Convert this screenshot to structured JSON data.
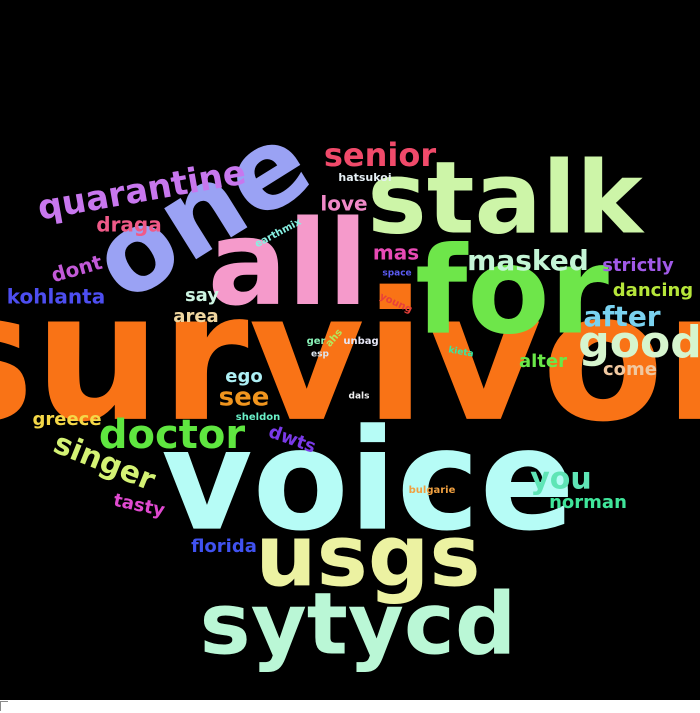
{
  "words": [
    {
      "text": "survivor",
      "color": "#f97316"
    },
    {
      "text": "voice",
      "color": "#b6fcf6"
    },
    {
      "text": "for",
      "color": "#6ee64a"
    },
    {
      "text": "stalk",
      "color": "#cdf5a8"
    },
    {
      "text": "all",
      "color": "#f59acb"
    },
    {
      "text": "one",
      "color": "#9aa2f4"
    },
    {
      "text": "usgs",
      "color": "#ecf2a2"
    },
    {
      "text": "sytycd",
      "color": "#baf7d6"
    },
    {
      "text": "doctor",
      "color": "#5fe640"
    },
    {
      "text": "good",
      "color": "#d6f5ce"
    },
    {
      "text": "quarantine",
      "color": "#c877ee"
    },
    {
      "text": "senior",
      "color": "#f04a6a"
    },
    {
      "text": "masked",
      "color": "#c4f5d6"
    },
    {
      "text": "singer",
      "color": "#d4f274"
    },
    {
      "text": "after",
      "color": "#7ad2f0"
    },
    {
      "text": "you",
      "color": "#5fe5b6"
    },
    {
      "text": "see",
      "color": "#f0951e"
    },
    {
      "text": "love",
      "color": "#f089c8"
    },
    {
      "text": "draga",
      "color": "#f05a88"
    },
    {
      "text": "dont",
      "color": "#c35ad8"
    },
    {
      "text": "kohlanta",
      "color": "#4d4ef0"
    },
    {
      "text": "strictly",
      "color": "#a15ae8"
    },
    {
      "text": "dancing",
      "color": "#b6e63a"
    },
    {
      "text": "mas",
      "color": "#e84ab5"
    },
    {
      "text": "say",
      "color": "#cdf5e2"
    },
    {
      "text": "area",
      "color": "#f0d7a0"
    },
    {
      "text": "alter",
      "color": "#6ae848"
    },
    {
      "text": "come",
      "color": "#f0c8a0"
    },
    {
      "text": "ego",
      "color": "#aef0f5"
    },
    {
      "text": "greece",
      "color": "#f5d848"
    },
    {
      "text": "dwts",
      "color": "#7a3ae8"
    },
    {
      "text": "norman",
      "color": "#40e59b"
    },
    {
      "text": "tasty",
      "color": "#e04ad0"
    },
    {
      "text": "florida",
      "color": "#4052f0"
    },
    {
      "text": "hatsukoi",
      "color": "#e6f0f5"
    },
    {
      "text": "earthmix",
      "color": "#88f0e2"
    },
    {
      "text": "space",
      "color": "#5a5af0"
    },
    {
      "text": "young",
      "color": "#e8403a"
    },
    {
      "text": "unbag",
      "color": "#e6e6f5"
    },
    {
      "text": "ahs",
      "color": "#b6e65a"
    },
    {
      "text": "ger",
      "color": "#88f0b6"
    },
    {
      "text": "esp",
      "color": "#dce6f0"
    },
    {
      "text": "kieta",
      "color": "#3ae8a0"
    },
    {
      "text": "sheldon",
      "color": "#6af0c8"
    },
    {
      "text": "dals",
      "color": "#f0f0f0"
    },
    {
      "text": "bulgarie",
      "color": "#f0a040"
    }
  ]
}
